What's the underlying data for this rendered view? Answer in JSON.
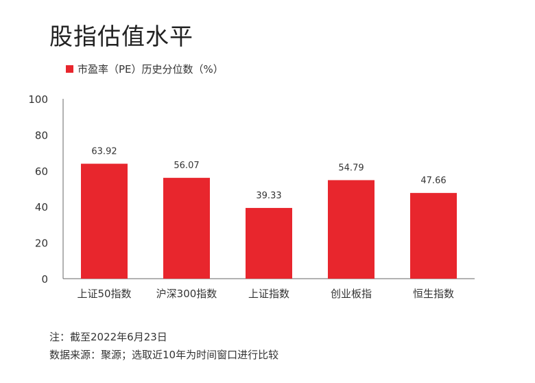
{
  "chart_data": {
    "type": "bar",
    "title": "股指估值水平",
    "legend": [
      {
        "name": "市盈率（PE）历史分位数（%）",
        "color": "#e8262d"
      }
    ],
    "categories": [
      "上证50指数",
      "沪深300指数",
      "上证指数",
      "创业板指",
      "恒生指数"
    ],
    "series": [
      {
        "name": "市盈率（PE）历史分位数（%）",
        "values": [
          63.92,
          56.07,
          39.33,
          54.79,
          47.66
        ],
        "color": "#e8262d"
      }
    ],
    "data_labels": [
      "63.92",
      "56.07",
      "39.33",
      "54.79",
      "47.66"
    ],
    "ylim": [
      0,
      100
    ],
    "yticks": [
      0,
      20,
      40,
      60,
      80,
      100
    ],
    "grid": false,
    "legend_position": "top-left"
  },
  "notes": {
    "line1": "注：截至2022年6月23日",
    "line2": "数据来源：聚源；选取近10年为时间窗口进行比较"
  }
}
